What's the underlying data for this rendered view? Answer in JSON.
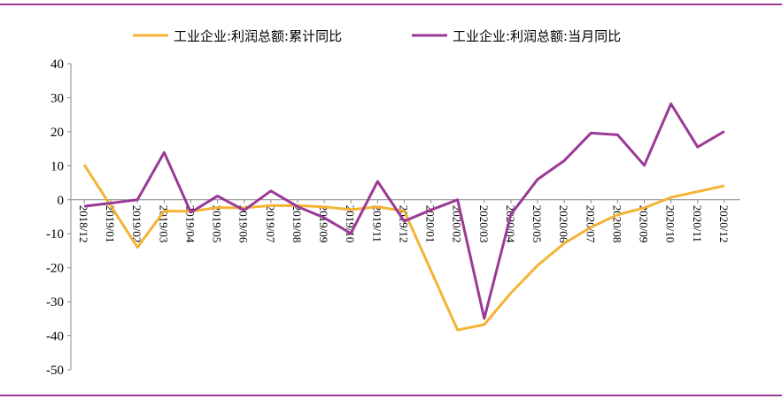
{
  "chart_data": {
    "type": "line",
    "categories": [
      "2018/12",
      "2019/01",
      "2019/02",
      "2019/03",
      "2019/04",
      "2019/05",
      "2019/06",
      "2019/07",
      "2019/08",
      "2019/09",
      "2019/10",
      "2019/11",
      "2019/12",
      "2020/01",
      "2020/02",
      "2020/03",
      "2020/04",
      "2020/05",
      "2020/06",
      "2020/07",
      "2020/08",
      "2020/09",
      "2020/10",
      "2020/11",
      "2020/12"
    ],
    "series": [
      {
        "name": "工业企业:利润总额:累计同比",
        "color": "#f5b335",
        "values": [
          10.3,
          -1.8,
          -14.0,
          -3.3,
          -3.4,
          -2.3,
          -2.4,
          -1.7,
          -1.7,
          -2.1,
          -2.9,
          -2.1,
          -3.3,
          -20.8,
          -38.3,
          -36.7,
          -27.4,
          -19.3,
          -12.8,
          -8.1,
          -4.4,
          -2.4,
          0.7,
          2.4,
          4.1
        ]
      },
      {
        "name": "工业企业:利润总额:当月同比",
        "color": "#9b3a96",
        "values": [
          -1.9,
          -1.0,
          0.0,
          13.9,
          -3.7,
          1.1,
          -3.1,
          2.6,
          -2.0,
          -5.3,
          -9.9,
          5.4,
          -6.3,
          -3.0,
          0.0,
          -34.9,
          -4.3,
          6.0,
          11.5,
          19.6,
          19.1,
          10.1,
          28.2,
          15.5,
          20.1
        ]
      }
    ],
    "ylim": [
      -50,
      40
    ],
    "yticks": [
      -50,
      -40,
      -30,
      -20,
      -10,
      0,
      10,
      20,
      30,
      40
    ],
    "legend": "top"
  }
}
